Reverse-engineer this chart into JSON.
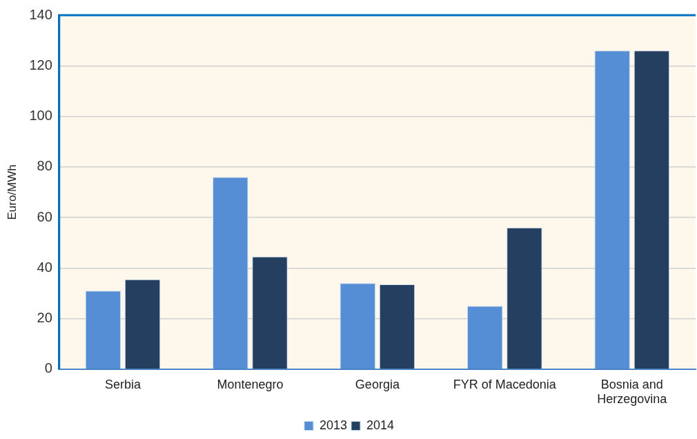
{
  "chart_data": {
    "type": "bar",
    "ylabel": "Euro/MWh",
    "categories": [
      "Serbia",
      "Montenegro",
      "Georgia",
      "FYR of Macedonia",
      "Bosnia and Herzegovina"
    ],
    "series": [
      {
        "name": "2013",
        "color": "#558ed5",
        "values": [
          31,
          76,
          34,
          25,
          126
        ]
      },
      {
        "name": "2014",
        "color": "#243f60",
        "values": [
          35.5,
          44.5,
          33.5,
          56,
          126
        ]
      }
    ],
    "ylim": [
      0,
      140
    ],
    "yticks": [
      0,
      20,
      40,
      60,
      80,
      100,
      120,
      140
    ],
    "grid": "y",
    "legend": "bottom"
  }
}
